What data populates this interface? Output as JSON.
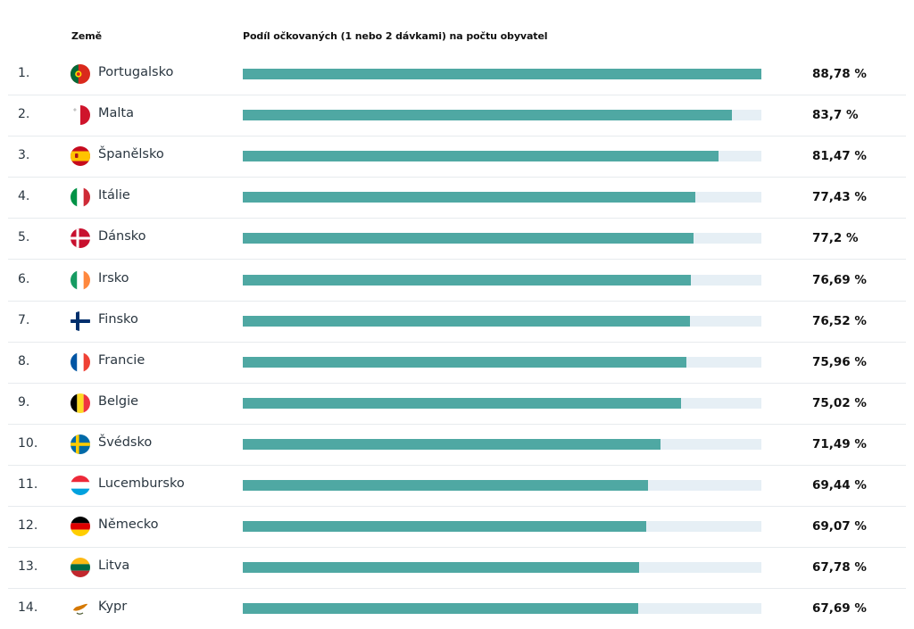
{
  "chart_data": {
    "type": "bar",
    "orientation": "horizontal",
    "headers": {
      "country": "Země",
      "share": "Podíl očkovaných (1 nebo 2 dávkami) na počtu obyvatel"
    },
    "xlim": [
      0,
      88.78
    ],
    "bar_color": "#4fa8a3",
    "track_color": "#e6eff5",
    "rows": [
      {
        "rank": "1.",
        "country": "Portugalsko",
        "value": 88.78,
        "label": "88,78 %",
        "flag": "portugal-flag"
      },
      {
        "rank": "2.",
        "country": "Malta",
        "value": 83.7,
        "label": "83,7 %",
        "flag": "malta-flag"
      },
      {
        "rank": "3.",
        "country": "Španělsko",
        "value": 81.47,
        "label": "81,47 %",
        "flag": "spain-flag"
      },
      {
        "rank": "4.",
        "country": "Itálie",
        "value": 77.43,
        "label": "77,43 %",
        "flag": "italy-flag"
      },
      {
        "rank": "5.",
        "country": "Dánsko",
        "value": 77.2,
        "label": "77,2 %",
        "flag": "denmark-flag"
      },
      {
        "rank": "6.",
        "country": "Irsko",
        "value": 76.69,
        "label": "76,69 %",
        "flag": "ireland-flag"
      },
      {
        "rank": "7.",
        "country": "Finsko",
        "value": 76.52,
        "label": "76,52 %",
        "flag": "finland-flag"
      },
      {
        "rank": "8.",
        "country": "Francie",
        "value": 75.96,
        "label": "75,96 %",
        "flag": "france-flag"
      },
      {
        "rank": "9.",
        "country": "Belgie",
        "value": 75.02,
        "label": "75,02 %",
        "flag": "belgium-flag"
      },
      {
        "rank": "10.",
        "country": "Švédsko",
        "value": 71.49,
        "label": "71,49 %",
        "flag": "sweden-flag"
      },
      {
        "rank": "11.",
        "country": "Lucembursko",
        "value": 69.44,
        "label": "69,44 %",
        "flag": "luxembourg-flag"
      },
      {
        "rank": "12.",
        "country": "Německo",
        "value": 69.07,
        "label": "69,07 %",
        "flag": "germany-flag"
      },
      {
        "rank": "13.",
        "country": "Litva",
        "value": 67.78,
        "label": "67,78 %",
        "flag": "lithuania-flag"
      },
      {
        "rank": "14.",
        "country": "Kypr",
        "value": 67.69,
        "label": "67,69 %",
        "flag": "cyprus-flag"
      }
    ]
  }
}
